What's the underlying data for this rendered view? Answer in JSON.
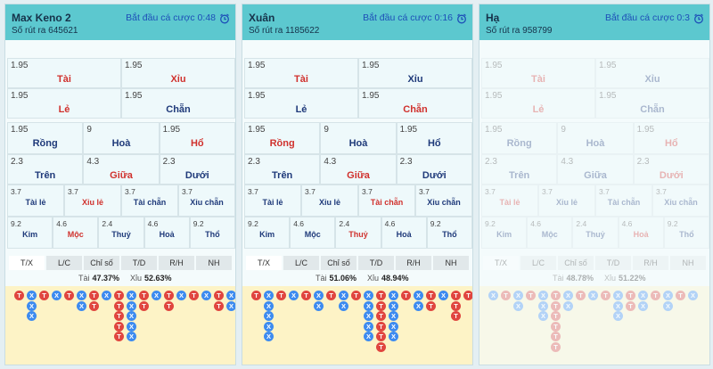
{
  "panels": [
    {
      "title": "Max Keno 2",
      "draw_label": "Số rút ra 645621",
      "countdown": "Bắt đầu cá cược 0:48",
      "disabled": false,
      "bets": [
        [
          {
            "odds": "1.95",
            "name": "Tài",
            "color": "#d0312d"
          },
          {
            "odds": "1.95",
            "name": "Xỉu",
            "color": "#d0312d"
          }
        ],
        [
          {
            "odds": "1.95",
            "name": "Lẻ",
            "color": "#d0312d"
          },
          {
            "odds": "1.95",
            "name": "Chẵn",
            "color": "#1f3a7a"
          }
        ],
        [
          {
            "odds": "1.95",
            "name": "Rồng",
            "color": "#1f3a7a"
          },
          {
            "odds": "9",
            "name": "Hoà",
            "color": "#1f3a7a"
          },
          {
            "odds": "1.95",
            "name": "Hổ",
            "color": "#d0312d"
          }
        ],
        [
          {
            "odds": "2.3",
            "name": "Trên",
            "color": "#1f3a7a"
          },
          {
            "odds": "4.3",
            "name": "Giữa",
            "color": "#d0312d"
          },
          {
            "odds": "2.3",
            "name": "Dưới",
            "color": "#1f3a7a"
          }
        ],
        [
          {
            "odds": "3.7",
            "name": "Tài lẻ",
            "color": "#1f3a7a"
          },
          {
            "odds": "3.7",
            "name": "Xỉu lẻ",
            "color": "#d0312d"
          },
          {
            "odds": "3.7",
            "name": "Tài chẵn",
            "color": "#1f3a7a"
          },
          {
            "odds": "3.7",
            "name": "Xỉu chẵn",
            "color": "#1f3a7a"
          }
        ],
        [
          {
            "odds": "9.2",
            "name": "Kim",
            "color": "#1f3a7a"
          },
          {
            "odds": "4.6",
            "name": "Mộc",
            "color": "#d0312d"
          },
          {
            "odds": "2.4",
            "name": "Thuỷ",
            "color": "#1f3a7a"
          },
          {
            "odds": "4.6",
            "name": "Hoả",
            "color": "#1f3a7a"
          },
          {
            "odds": "9.2",
            "name": "Thổ",
            "color": "#1f3a7a"
          }
        ]
      ],
      "tabs": [
        "T/X",
        "L/C",
        "Chỉ số",
        "T/D",
        "R/H",
        "NH"
      ],
      "active_tab": 0,
      "stats": [
        {
          "label": "Tài",
          "value": "47.37%"
        },
        {
          "label": "Xỉu",
          "value": "52.63%"
        }
      ],
      "road": [
        [
          "T"
        ],
        [
          "X",
          "X",
          "X"
        ],
        [
          "T"
        ],
        [
          "X"
        ],
        [
          "T"
        ],
        [
          "X",
          "X"
        ],
        [
          "T",
          "T"
        ],
        [
          "X"
        ],
        [
          "T",
          "T",
          "T",
          "T",
          "T"
        ],
        [
          "X",
          "X",
          "X",
          "X",
          "X"
        ],
        [
          "T",
          "T"
        ],
        [
          "X"
        ],
        [
          "T",
          "T"
        ],
        [
          "X"
        ],
        [
          "T"
        ],
        [
          "X"
        ],
        [
          "T",
          "T"
        ],
        [
          "X",
          "X"
        ]
      ]
    },
    {
      "title": "Xuân",
      "draw_label": "Số rút ra 1185622",
      "countdown": "Bắt đầu cá cược 0:16",
      "disabled": false,
      "bets": [
        [
          {
            "odds": "1.95",
            "name": "Tài",
            "color": "#d0312d"
          },
          {
            "odds": "1.95",
            "name": "Xỉu",
            "color": "#1f3a7a"
          }
        ],
        [
          {
            "odds": "1.95",
            "name": "Lẻ",
            "color": "#1f3a7a"
          },
          {
            "odds": "1.95",
            "name": "Chẵn",
            "color": "#d0312d"
          }
        ],
        [
          {
            "odds": "1.95",
            "name": "Rồng",
            "color": "#d0312d"
          },
          {
            "odds": "9",
            "name": "Hoà",
            "color": "#1f3a7a"
          },
          {
            "odds": "1.95",
            "name": "Hổ",
            "color": "#1f3a7a"
          }
        ],
        [
          {
            "odds": "2.3",
            "name": "Trên",
            "color": "#1f3a7a"
          },
          {
            "odds": "4.3",
            "name": "Giữa",
            "color": "#d0312d"
          },
          {
            "odds": "2.3",
            "name": "Dưới",
            "color": "#1f3a7a"
          }
        ],
        [
          {
            "odds": "3.7",
            "name": "Tài lẻ",
            "color": "#1f3a7a"
          },
          {
            "odds": "3.7",
            "name": "Xỉu lẻ",
            "color": "#1f3a7a"
          },
          {
            "odds": "3.7",
            "name": "Tài chẵn",
            "color": "#d0312d"
          },
          {
            "odds": "3.7",
            "name": "Xỉu chẵn",
            "color": "#1f3a7a"
          }
        ],
        [
          {
            "odds": "9.2",
            "name": "Kim",
            "color": "#1f3a7a"
          },
          {
            "odds": "4.6",
            "name": "Mộc",
            "color": "#1f3a7a"
          },
          {
            "odds": "2.4",
            "name": "Thuỷ",
            "color": "#d0312d"
          },
          {
            "odds": "4.6",
            "name": "Hoả",
            "color": "#1f3a7a"
          },
          {
            "odds": "9.2",
            "name": "Thổ",
            "color": "#1f3a7a"
          }
        ]
      ],
      "tabs": [
        "T/X",
        "L/C",
        "Chỉ số",
        "T/D",
        "R/H",
        "NH"
      ],
      "active_tab": 0,
      "stats": [
        {
          "label": "Tài",
          "value": "51.06%"
        },
        {
          "label": "Xỉu",
          "value": "48.94%"
        }
      ],
      "road": [
        [
          "T"
        ],
        [
          "X",
          "X",
          "X",
          "X",
          "X"
        ],
        [
          "T"
        ],
        [
          "X"
        ],
        [
          "T"
        ],
        [
          "X",
          "X"
        ],
        [
          "T"
        ],
        [
          "X",
          "X"
        ],
        [
          "T"
        ],
        [
          "X",
          "X",
          "X",
          "X",
          "X"
        ],
        [
          "T",
          "T",
          "T",
          "T",
          "T",
          "T"
        ],
        [
          "X",
          "X",
          "X",
          "X",
          "X"
        ],
        [
          "T"
        ],
        [
          "X",
          "X"
        ],
        [
          "T",
          "T"
        ],
        [
          "X"
        ],
        [
          "T",
          "T",
          "T"
        ],
        [
          "T"
        ]
      ]
    },
    {
      "title": "Hạ",
      "draw_label": "Số rút ra 958799",
      "countdown": "Bắt đầu cá cược 0:3",
      "disabled": true,
      "bets": [
        [
          {
            "odds": "1.95",
            "name": "Tài",
            "color": "#d0312d"
          },
          {
            "odds": "1.95",
            "name": "Xỉu",
            "color": "#1f3a7a"
          }
        ],
        [
          {
            "odds": "1.95",
            "name": "Lẻ",
            "color": "#d0312d"
          },
          {
            "odds": "1.95",
            "name": "Chẵn",
            "color": "#1f3a7a"
          }
        ],
        [
          {
            "odds": "1.95",
            "name": "Rồng",
            "color": "#1f3a7a"
          },
          {
            "odds": "9",
            "name": "Hoà",
            "color": "#1f3a7a"
          },
          {
            "odds": "1.95",
            "name": "Hổ",
            "color": "#d0312d"
          }
        ],
        [
          {
            "odds": "2.3",
            "name": "Trên",
            "color": "#1f3a7a"
          },
          {
            "odds": "4.3",
            "name": "Giữa",
            "color": "#1f3a7a"
          },
          {
            "odds": "2.3",
            "name": "Dưới",
            "color": "#d0312d"
          }
        ],
        [
          {
            "odds": "3.7",
            "name": "Tài lẻ",
            "color": "#d0312d"
          },
          {
            "odds": "3.7",
            "name": "Xỉu lẻ",
            "color": "#1f3a7a"
          },
          {
            "odds": "3.7",
            "name": "Tài chẵn",
            "color": "#1f3a7a"
          },
          {
            "odds": "3.7",
            "name": "Xỉu chẵn",
            "color": "#1f3a7a"
          }
        ],
        [
          {
            "odds": "9.2",
            "name": "Kim",
            "color": "#1f3a7a"
          },
          {
            "odds": "4.6",
            "name": "Mộc",
            "color": "#1f3a7a"
          },
          {
            "odds": "2.4",
            "name": "Thuỷ",
            "color": "#1f3a7a"
          },
          {
            "odds": "4.6",
            "name": "Hoả",
            "color": "#d0312d"
          },
          {
            "odds": "9.2",
            "name": "Thổ",
            "color": "#1f3a7a"
          }
        ]
      ],
      "tabs": [
        "T/X",
        "L/C",
        "Chỉ số",
        "T/D",
        "R/H",
        "NH"
      ],
      "active_tab": 0,
      "stats": [
        {
          "label": "Tài",
          "value": "48.78%"
        },
        {
          "label": "Xỉu",
          "value": "51.22%"
        }
      ],
      "road": [
        [
          "X"
        ],
        [
          "T"
        ],
        [
          "X",
          "X"
        ],
        [
          "T"
        ],
        [
          "X",
          "X",
          "X"
        ],
        [
          "T",
          "T",
          "T",
          "T",
          "T",
          "T"
        ],
        [
          "X",
          "X"
        ],
        [
          "T"
        ],
        [
          "X"
        ],
        [
          "T"
        ],
        [
          "X",
          "X",
          "X"
        ],
        [
          "T",
          "T"
        ],
        [
          "X",
          "X"
        ],
        [
          "T"
        ],
        [
          "X",
          "X"
        ],
        [
          "T"
        ],
        [
          "X"
        ]
      ]
    }
  ],
  "road_colors": {
    "T": "#e0453f",
    "X": "#3d8bf0"
  }
}
